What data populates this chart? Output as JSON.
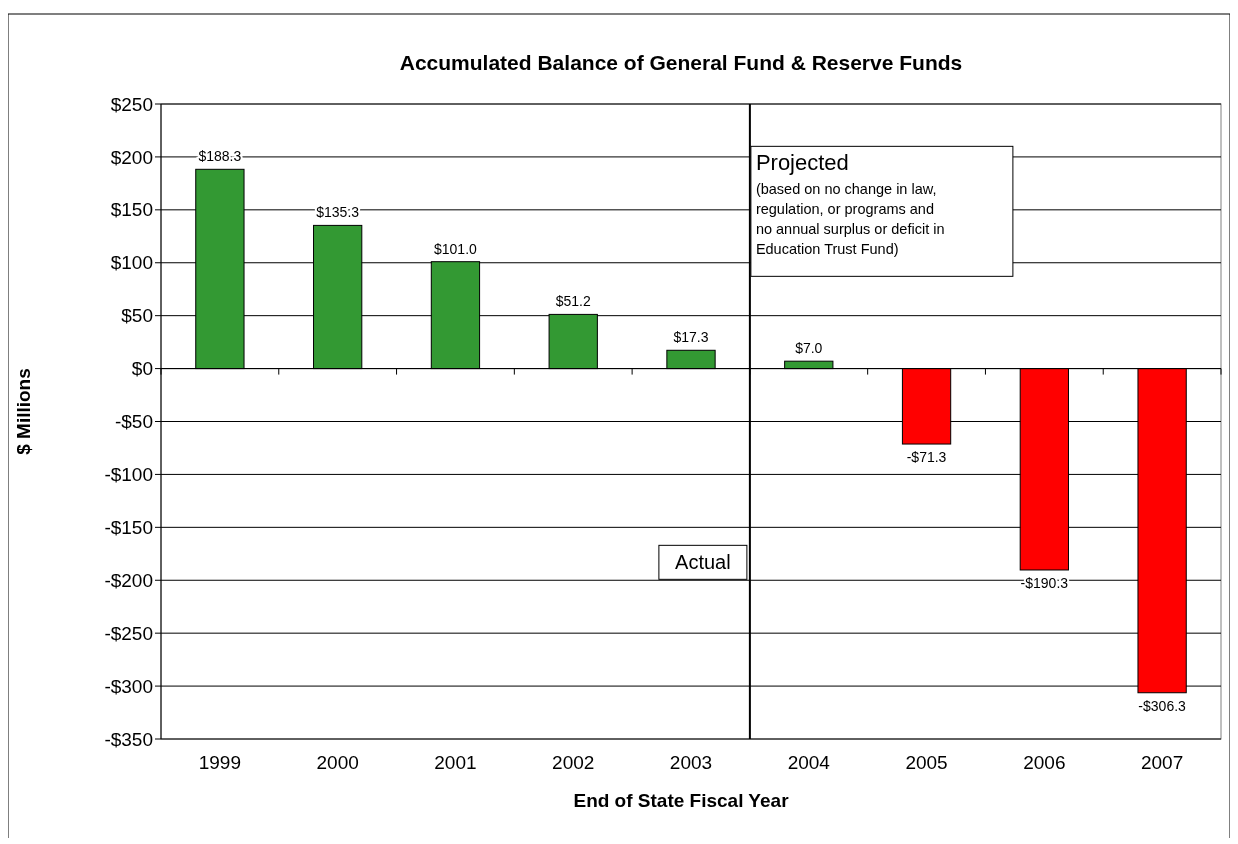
{
  "chart_data": {
    "type": "bar",
    "title": "Accumulated Balance of General Fund & Reserve Funds",
    "xlabel": "End of State Fiscal Year",
    "ylabel": "$ Millions",
    "x": [
      1999,
      2000,
      2001,
      2002,
      2003,
      2004,
      2005,
      2006,
      2007
    ],
    "values": [
      188.3,
      135.3,
      101.0,
      51.2,
      17.3,
      7.0,
      -71.3,
      -190.3,
      -306.3
    ],
    "colors": [
      "#339933",
      "#339933",
      "#339933",
      "#339933",
      "#339933",
      "#339933",
      "#ff0000",
      "#ff0000",
      "#ff0000"
    ],
    "value_labels": [
      "$188.3",
      "$135.3",
      "$101.0",
      "$51.2",
      "$17.3",
      "$7.0",
      "-$71.3",
      "-$190.3",
      "-$306.3"
    ],
    "xlim": [
      1998.5,
      2007.5
    ],
    "xticks": [
      1999,
      2000,
      2001,
      2002,
      2003,
      2004,
      2005,
      2006,
      2007,
      {
        "value": 1998.5,
        "label": null
      },
      {
        "value": 1999.5,
        "label": null
      },
      {
        "value": 2000.5,
        "label": null
      },
      {
        "value": 2001.5,
        "label": null
      },
      {
        "value": 2002.5,
        "label": null
      },
      {
        "value": 2003.5,
        "label": null
      },
      {
        "value": 2004.5,
        "label": null
      },
      {
        "value": 2005.5,
        "label": null
      },
      {
        "value": 2006.5,
        "label": null
      },
      {
        "value": 2007.5,
        "label": null
      }
    ],
    "ylim": [
      -350,
      250
    ],
    "yticks": [
      {
        "value": 250,
        "label": "$250"
      },
      {
        "value": 200,
        "label": "$200"
      },
      {
        "value": 150,
        "label": "$150"
      },
      {
        "value": 100,
        "label": "$100"
      },
      {
        "value": 50,
        "label": "$50"
      },
      {
        "value": 0,
        "label": "$0"
      },
      {
        "value": -50,
        "label": "-$50"
      },
      {
        "value": -100,
        "label": "-$100"
      },
      {
        "value": -150,
        "label": "-$150"
      },
      {
        "value": -200,
        "label": "-$200"
      },
      {
        "value": -250,
        "label": "-$250"
      },
      {
        "value": -300,
        "label": "-$300"
      },
      {
        "value": -350,
        "label": "-$350"
      }
    ],
    "grid": "y",
    "ref_lines": [
      {
        "axis": "x",
        "value": 2003.5,
        "color": "#000000"
      }
    ],
    "annotations": [
      "Actual",
      "Projected",
      "(based on no change in law,\nregulation, or programs and\nno annual surplus or deficit in\nEducation Trust Fund)"
    ]
  }
}
